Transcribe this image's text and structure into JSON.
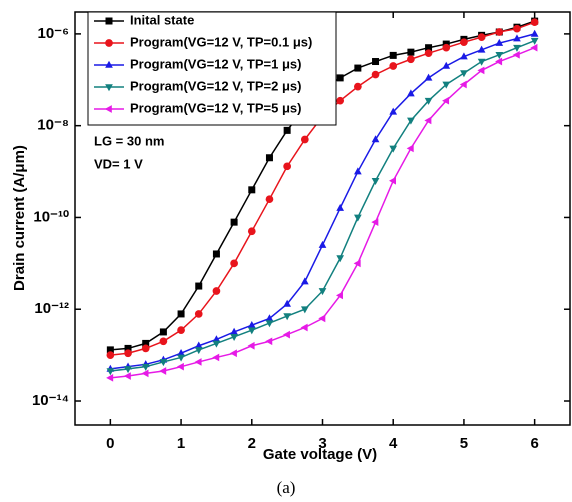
{
  "chart_data": {
    "type": "line",
    "xlabel": "Gate voltage (V)",
    "ylabel": "Drain current (A/μm)",
    "caption": "(a)",
    "annotations": [
      "LG = 30 nm",
      "VD= 1 V"
    ],
    "log_y": true,
    "legend": "upper left",
    "xlim": [
      -0.5,
      6.5
    ],
    "xticks": [
      0,
      1,
      2,
      3,
      4,
      5,
      6
    ],
    "ylim": [
      3e-15,
      3e-06
    ],
    "yticks": [
      {
        "value": 1e-14,
        "label": "10⁻¹⁴"
      },
      {
        "value": 1e-12,
        "label": "10⁻¹²"
      },
      {
        "value": 1e-10,
        "label": "10⁻¹⁰"
      },
      {
        "value": 1e-08,
        "label": "10⁻⁸"
      },
      {
        "value": 1e-06,
        "label": "10⁻⁶"
      }
    ],
    "x": [
      0,
      0.25,
      0.5,
      0.75,
      1,
      1.25,
      1.5,
      1.75,
      2,
      2.25,
      2.5,
      2.75,
      3,
      3.25,
      3.5,
      3.75,
      4,
      4.25,
      4.5,
      4.75,
      5,
      5.25,
      5.5,
      5.75,
      6
    ],
    "series": [
      {
        "name": "Inital state",
        "color": "#000000",
        "marker": "square",
        "values": [
          1.3e-13,
          1.4e-13,
          1.8e-13,
          3.2e-13,
          7.9e-13,
          3.2e-12,
          1.6e-11,
          7.9e-11,
          4e-10,
          2e-09,
          7.9e-09,
          2.5e-08,
          6.3e-08,
          1.1e-07,
          1.8e-07,
          2.5e-07,
          3.4e-07,
          4e-07,
          5e-07,
          6e-07,
          7.6e-07,
          9.3e-07,
          1.1e-06,
          1.4e-06,
          1.9e-06
        ]
      },
      {
        "name": "Program(VG=12 V, TP=0.1 μs)",
        "color": "#e8141c",
        "marker": "circle",
        "values": [
          1e-13,
          1.1e-13,
          1.4e-13,
          2e-13,
          3.5e-13,
          7.9e-13,
          2.5e-12,
          1e-11,
          5e-11,
          2.5e-10,
          1.3e-09,
          5e-09,
          1.6e-08,
          3.5e-08,
          7.1e-08,
          1.3e-07,
          2e-07,
          2.8e-07,
          3.8e-07,
          5e-07,
          6.6e-07,
          8.5e-07,
          1.1e-06,
          1.3e-06,
          1.8e-06
        ]
      },
      {
        "name": "Program(VG=12 V, TP=1 μs)",
        "color": "#1a1ae6",
        "marker": "triangle-up",
        "values": [
          5e-14,
          5.6e-14,
          6.3e-14,
          7.9e-14,
          1.1e-13,
          1.6e-13,
          2.2e-13,
          3.2e-13,
          4.5e-13,
          6.3e-13,
          1.3e-12,
          4e-12,
          2.5e-11,
          1.6e-10,
          1e-09,
          5e-09,
          2e-08,
          5e-08,
          1.1e-07,
          2e-07,
          3.2e-07,
          4.5e-07,
          6.3e-07,
          7.9e-07,
          1e-06
        ]
      },
      {
        "name": "Program(VG=12 V, TP=2 μs)",
        "color": "#12807f",
        "marker": "triangle-down",
        "values": [
          4.5e-14,
          5e-14,
          5.6e-14,
          7.1e-14,
          8.9e-14,
          1.3e-13,
          1.8e-13,
          2.5e-13,
          3.5e-13,
          5e-13,
          7.1e-13,
          1e-12,
          2.5e-12,
          1.3e-11,
          1e-10,
          6.3e-10,
          3.2e-09,
          1.3e-08,
          3.5e-08,
          7.9e-08,
          1.4e-07,
          2.5e-07,
          3.5e-07,
          5e-07,
          7.1e-07
        ]
      },
      {
        "name": "Program(VG=12 V, TP=5 μs)",
        "color": "#e61ae6",
        "marker": "triangle-left",
        "values": [
          3.2e-14,
          3.5e-14,
          4e-14,
          4.5e-14,
          5.6e-14,
          7.1e-14,
          8.9e-14,
          1.1e-13,
          1.6e-13,
          2e-13,
          2.8e-13,
          4e-13,
          6.3e-13,
          2e-12,
          1e-11,
          7.9e-11,
          6.3e-10,
          3.2e-09,
          1.3e-08,
          3.5e-08,
          7.9e-08,
          1.6e-07,
          2.5e-07,
          3.5e-07,
          5e-07
        ]
      }
    ]
  }
}
